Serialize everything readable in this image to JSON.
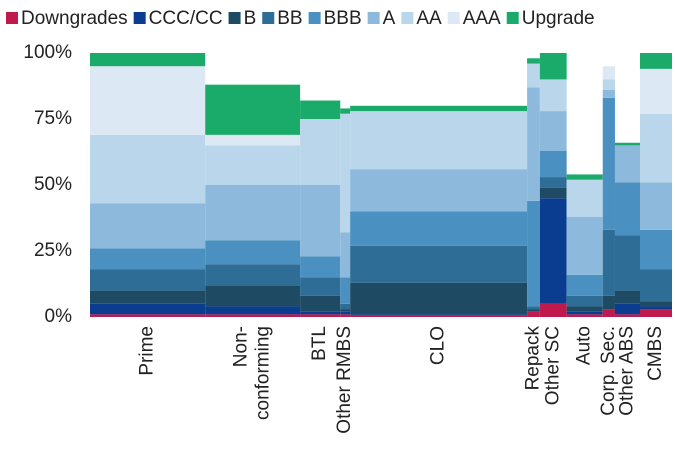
{
  "chart_data": {
    "type": "marimekko",
    "categories": [
      "Prime",
      "Non-\nconforming",
      "BTL",
      "Other RMBS",
      "CLO",
      "Repack",
      "Other SC",
      "Auto",
      "Corp. Sec.",
      "Other ABS",
      "CMBS"
    ],
    "widths": [
      19.8,
      16.3,
      6.9,
      1.7,
      30.4,
      2.2,
      4.6,
      6.2,
      2.1,
      4.3,
      5.5
    ],
    "series": [
      {
        "name": "Downgrades",
        "color": "#c0194e",
        "values": [
          1,
          1,
          1,
          1,
          0.5,
          2,
          5,
          1,
          3,
          1,
          3
        ]
      },
      {
        "name": "CCC/CC",
        "color": "#0a3d8f",
        "values": [
          4,
          3,
          1,
          1,
          0.5,
          0,
          40,
          1,
          0,
          4,
          1
        ]
      },
      {
        "name": "B",
        "color": "#1f4a63",
        "values": [
          5,
          8,
          6,
          1,
          12,
          1,
          4,
          2,
          5,
          5,
          2
        ]
      },
      {
        "name": "BB",
        "color": "#2e6d95",
        "values": [
          8,
          8,
          7,
          2,
          14,
          1,
          4,
          4,
          25,
          21,
          12
        ]
      },
      {
        "name": "BBB",
        "color": "#4a90c0",
        "values": [
          8,
          9,
          8,
          10,
          13,
          40,
          10,
          8,
          50,
          20,
          15
        ]
      },
      {
        "name": "A",
        "color": "#8dbadc",
        "values": [
          17,
          21,
          27,
          17,
          16,
          43,
          15,
          22,
          3,
          14,
          18
        ]
      },
      {
        "name": "AA",
        "color": "#b9d6ea",
        "values": [
          26,
          15,
          25,
          45,
          22,
          9,
          12,
          14,
          4,
          0,
          26
        ]
      },
      {
        "name": "AAA",
        "color": "#dce9f4",
        "values": [
          26,
          4,
          0,
          0,
          0,
          0,
          0,
          0,
          5,
          0,
          17
        ]
      },
      {
        "name": "Upgrade",
        "color": "#1aaa6a",
        "values": [
          5,
          19,
          7,
          2,
          2,
          2,
          10,
          2,
          0,
          1,
          6
        ]
      }
    ],
    "ylim": [
      0,
      100
    ],
    "yticks": [
      {
        "value": 0,
        "label": "0%"
      },
      {
        "value": 25,
        "label": "25%"
      },
      {
        "value": 50,
        "label": "50%"
      },
      {
        "value": 75,
        "label": "75%"
      },
      {
        "value": 100,
        "label": "100%"
      }
    ]
  }
}
